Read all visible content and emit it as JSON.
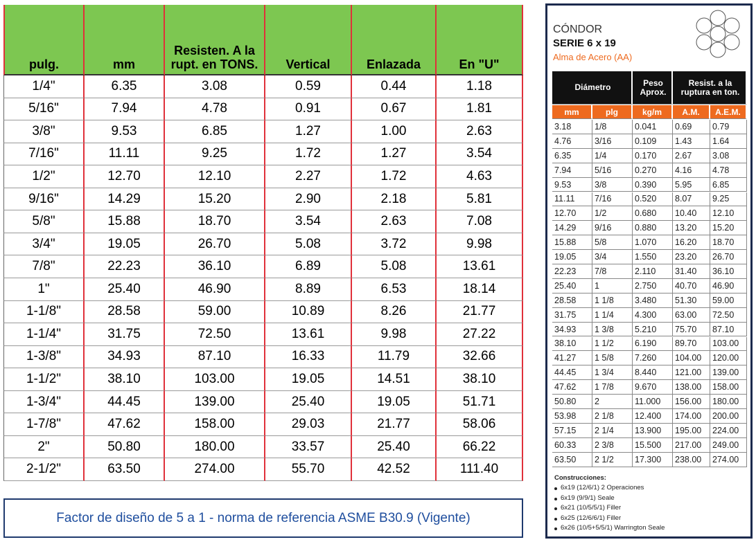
{
  "left_table": {
    "headers": [
      "pulg.",
      "mm",
      "Resisten. A la rupt. en TONS.",
      "Vertical",
      "Enlazada",
      "En \"U\""
    ],
    "rows": [
      [
        "1/4\"",
        "6.35",
        "3.08",
        "0.59",
        "0.44",
        "1.18"
      ],
      [
        "5/16\"",
        "7.94",
        "4.78",
        "0.91",
        "0.67",
        "1.81"
      ],
      [
        "3/8\"",
        "9.53",
        "6.85",
        "1.27",
        "1.00",
        "2.63"
      ],
      [
        "7/16\"",
        "11.11",
        "9.25",
        "1.72",
        "1.27",
        "3.54"
      ],
      [
        "1/2\"",
        "12.70",
        "12.10",
        "2.27",
        "1.72",
        "4.63"
      ],
      [
        "9/16\"",
        "14.29",
        "15.20",
        "2.90",
        "2.18",
        "5.81"
      ],
      [
        "5/8\"",
        "15.88",
        "18.70",
        "3.54",
        "2.63",
        "7.08"
      ],
      [
        "3/4\"",
        "19.05",
        "26.70",
        "5.08",
        "3.72",
        "9.98"
      ],
      [
        "7/8\"",
        "22.23",
        "36.10",
        "6.89",
        "5.08",
        "13.61"
      ],
      [
        "1\"",
        "25.40",
        "46.90",
        "8.89",
        "6.53",
        "18.14"
      ],
      [
        "1-1/8\"",
        "28.58",
        "59.00",
        "10.89",
        "8.26",
        "21.77"
      ],
      [
        "1-1/4\"",
        "31.75",
        "72.50",
        "13.61",
        "9.98",
        "27.22"
      ],
      [
        "1-3/8\"",
        "34.93",
        "87.10",
        "16.33",
        "11.79",
        "32.66"
      ],
      [
        "1-1/2\"",
        "38.10",
        "103.00",
        "19.05",
        "14.51",
        "38.10"
      ],
      [
        "1-3/4\"",
        "44.45",
        "139.00",
        "25.40",
        "19.05",
        "51.71"
      ],
      [
        "1-7/8\"",
        "47.62",
        "158.00",
        "29.03",
        "21.77",
        "58.06"
      ],
      [
        "2\"",
        "50.80",
        "180.00",
        "33.57",
        "25.40",
        "66.22"
      ],
      [
        "2-1/2\"",
        "63.50",
        "274.00",
        "55.70",
        "42.52",
        "111.40"
      ]
    ]
  },
  "footer": "Factor de diseño de 5 a 1 - norma de referencia ASME B30.9 (Vigente)",
  "right_panel": {
    "brand": "CÓNDOR",
    "series": "SERIE 6 x 19",
    "core": "Alma de Acero (AA)",
    "group_headers": [
      "Diámetro",
      "Peso Aprox.",
      "Resist. a la ruptura en ton."
    ],
    "sub_headers": [
      "mm",
      "plg",
      "kg/m",
      "A.M.",
      "A.E.M."
    ],
    "rows": [
      [
        "3.18",
        "1/8",
        "0.041",
        "0.69",
        "0.79"
      ],
      [
        "4.76",
        "3/16",
        "0.109",
        "1.43",
        "1.64"
      ],
      [
        "6.35",
        "1/4",
        "0.170",
        "2.67",
        "3.08"
      ],
      [
        "7.94",
        "5/16",
        "0.270",
        "4.16",
        "4.78"
      ],
      [
        "9.53",
        "3/8",
        "0.390",
        "5.95",
        "6.85"
      ],
      [
        "11.11",
        "7/16",
        "0.520",
        "8.07",
        "9.25"
      ],
      [
        "12.70",
        "1/2",
        "0.680",
        "10.40",
        "12.10"
      ],
      [
        "14.29",
        "9/16",
        "0.880",
        "13.20",
        "15.20"
      ],
      [
        "15.88",
        "5/8",
        "1.070",
        "16.20",
        "18.70"
      ],
      [
        "19.05",
        "3/4",
        "1.550",
        "23.20",
        "26.70"
      ],
      [
        "22.23",
        "7/8",
        "2.110",
        "31.40",
        "36.10"
      ],
      [
        "25.40",
        "1",
        "2.750",
        "40.70",
        "46.90"
      ],
      [
        "28.58",
        "1 1/8",
        "3.480",
        "51.30",
        "59.00"
      ],
      [
        "31.75",
        "1 1/4",
        "4.300",
        "63.00",
        "72.50"
      ],
      [
        "34.93",
        "1 3/8",
        "5.210",
        "75.70",
        "87.10"
      ],
      [
        "38.10",
        "1 1/2",
        "6.190",
        "89.70",
        "103.00"
      ],
      [
        "41.27",
        "1 5/8",
        "7.260",
        "104.00",
        "120.00"
      ],
      [
        "44.45",
        "1 3/4",
        "8.440",
        "121.00",
        "139.00"
      ],
      [
        "47.62",
        "1 7/8",
        "9.670",
        "138.00",
        "158.00"
      ],
      [
        "50.80",
        "2",
        "11.000",
        "156.00",
        "180.00"
      ],
      [
        "53.98",
        "2 1/8",
        "12.400",
        "174.00",
        "200.00"
      ],
      [
        "57.15",
        "2 1/4",
        "13.900",
        "195.00",
        "224.00"
      ],
      [
        "60.33",
        "2 3/8",
        "15.500",
        "217.00",
        "249.00"
      ],
      [
        "63.50",
        "2 1/2",
        "17.300",
        "238.00",
        "274.00"
      ]
    ],
    "constructions_title": "Construcciones:",
    "constructions": [
      "6x19 (12/6/1) 2 Operaciones",
      "6x19 (9/9/1) Seale",
      "6x21 (10/5/5/1) Filler",
      "6x25 (12/6/6/1) Filler",
      "6x26 (10/5+5/5/1) Warrington Seale"
    ]
  }
}
